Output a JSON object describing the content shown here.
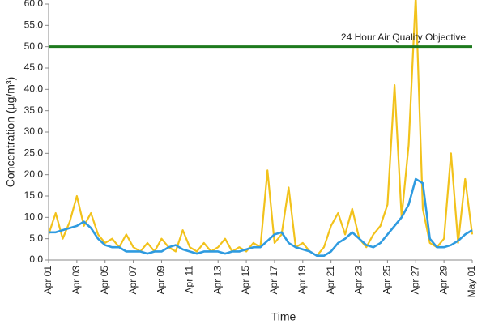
{
  "chart_data": {
    "type": "line",
    "ylabel": "Concentration (µg/m³)",
    "xlabel": "Time",
    "x": [
      0,
      0.5,
      1,
      1.5,
      2,
      2.5,
      3,
      3.5,
      4,
      4.5,
      5,
      5.5,
      6,
      6.5,
      7,
      7.5,
      8,
      8.5,
      9,
      9.5,
      10,
      10.5,
      11,
      11.5,
      12,
      12.5,
      13,
      13.5,
      14,
      14.5,
      15,
      15.5,
      16,
      16.5,
      17,
      17.5,
      18,
      18.5,
      19,
      19.5,
      20,
      20.5,
      21,
      21.5,
      22,
      22.5,
      23,
      23.5,
      24,
      24.5,
      25,
      25.5,
      26,
      26.5,
      27,
      27.5,
      28,
      28.5,
      29,
      29.5,
      30
    ],
    "series": [
      {
        "color": "#f2c21b",
        "width": 2.2,
        "values": [
          6,
          11,
          5,
          9,
          15,
          8,
          11,
          6,
          4,
          5,
          3,
          6,
          3,
          2,
          4,
          2,
          5,
          3,
          2,
          7,
          3,
          2,
          4,
          2,
          3,
          5,
          2,
          3,
          2,
          4,
          3,
          21,
          4,
          6,
          17,
          3,
          4,
          2,
          1,
          3,
          8,
          11,
          6,
          12,
          5,
          3,
          6,
          8,
          13,
          41,
          10,
          27,
          62,
          12,
          4,
          3,
          5,
          25,
          4,
          19,
          6
        ]
      },
      {
        "color": "#2f9be0",
        "width": 2.6,
        "values": [
          6.5,
          6.5,
          7,
          7.5,
          8,
          9,
          7.5,
          5,
          3.5,
          3,
          3,
          2,
          2,
          2,
          1.5,
          2,
          2,
          3,
          3.5,
          2.5,
          2,
          1.5,
          2,
          2,
          2,
          1.5,
          2,
          2,
          2.5,
          3,
          3,
          4.5,
          6,
          6.5,
          4,
          3,
          2.5,
          2,
          1,
          1,
          2,
          4,
          5,
          6.5,
          5,
          3.5,
          3,
          4,
          6,
          8,
          10,
          13,
          19,
          18,
          5,
          3,
          3,
          3.5,
          4.5,
          6,
          7
        ]
      }
    ],
    "reference_line": {
      "value": 50,
      "label": "24 Hour Air Quality Objective",
      "color": "#1d7a1d"
    },
    "xlim": [
      0,
      30
    ],
    "xticks": [
      {
        "value": 0,
        "label": "Apr 01"
      },
      {
        "value": 2,
        "label": "Apr 03"
      },
      {
        "value": 4,
        "label": "Apr 05"
      },
      {
        "value": 6,
        "label": "Apr 07"
      },
      {
        "value": 8,
        "label": "Apr 09"
      },
      {
        "value": 10,
        "label": "Apr 11"
      },
      {
        "value": 12,
        "label": "Apr 13"
      },
      {
        "value": 14,
        "label": "Apr 15"
      },
      {
        "value": 16,
        "label": "Apr 17"
      },
      {
        "value": 18,
        "label": "Apr 19"
      },
      {
        "value": 20,
        "label": "Apr 21"
      },
      {
        "value": 22,
        "label": "Apr 23"
      },
      {
        "value": 24,
        "label": "Apr 25"
      },
      {
        "value": 26,
        "label": "Apr 27"
      },
      {
        "value": 28,
        "label": "Apr 29"
      },
      {
        "value": 30,
        "label": "May 01"
      }
    ],
    "ylim": [
      0,
      60
    ],
    "yticks": [
      {
        "value": 0,
        "label": "0.0"
      },
      {
        "value": 5,
        "label": "5.0"
      },
      {
        "value": 10,
        "label": "10.0"
      },
      {
        "value": 15,
        "label": "15.0"
      },
      {
        "value": 20,
        "label": "20.0"
      },
      {
        "value": 25,
        "label": "25.0"
      },
      {
        "value": 30,
        "label": "30.0"
      },
      {
        "value": 35,
        "label": "35.0"
      },
      {
        "value": 40,
        "label": "40.0"
      },
      {
        "value": 45,
        "label": "45.0"
      },
      {
        "value": 50,
        "label": "50.0"
      },
      {
        "value": 55,
        "label": "55.0"
      },
      {
        "value": 60,
        "label": "60.0"
      }
    ]
  }
}
